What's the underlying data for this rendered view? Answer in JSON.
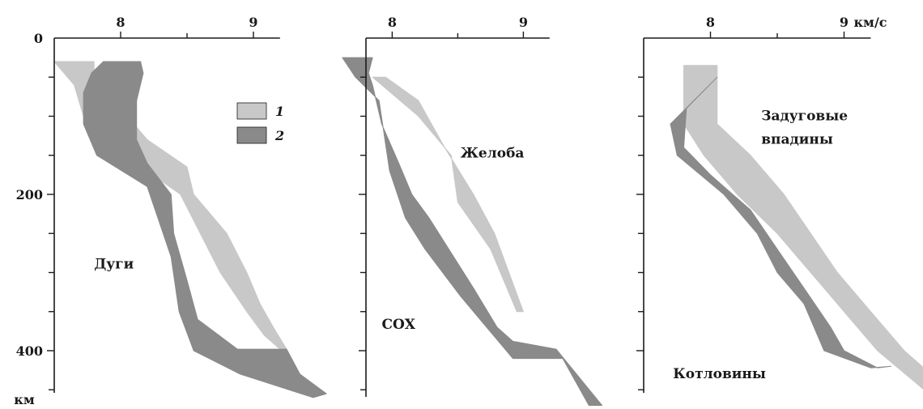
{
  "chart_data": {
    "type": "area",
    "title": "",
    "x_unit": "км/с",
    "y_unit": "км",
    "ylim": [
      0,
      460
    ],
    "y_ticks": [
      0,
      200,
      400
    ],
    "y_minor_step": 50,
    "legend": {
      "placement": "inside-first-panel-top-right",
      "entries": [
        {
          "key": "1",
          "label": "1",
          "color": "#c8c8c8"
        },
        {
          "key": "2",
          "label": "2",
          "color": "#8a8a8a"
        }
      ]
    },
    "panels": [
      {
        "xlim": [
          7.5,
          9.2
        ],
        "x_ticks": [
          8,
          9
        ],
        "x_minor": [
          8.5
        ],
        "y_tick_labels_shown": true,
        "y_unit_shown": true,
        "x_unit_shown": false,
        "labels": [
          {
            "text": "Дуги",
            "x": 7.8,
            "y": 295
          }
        ],
        "bands": [
          {
            "series": "1",
            "left": [
              [
                7.5,
                30
              ],
              [
                7.65,
                60
              ],
              [
                7.72,
                100
              ],
              [
                7.85,
                130
              ],
              [
                8.2,
                170
              ],
              [
                8.45,
                200
              ],
              [
                8.6,
                250
              ],
              [
                8.75,
                300
              ],
              [
                8.95,
                350
              ],
              [
                9.08,
                380
              ],
              [
                9.2,
                398
              ]
            ],
            "right": [
              [
                7.8,
                30
              ],
              [
                7.8,
                60
              ],
              [
                8.05,
                100
              ],
              [
                8.2,
                130
              ],
              [
                8.5,
                165
              ],
              [
                8.55,
                200
              ],
              [
                8.8,
                250
              ],
              [
                8.95,
                300
              ],
              [
                9.05,
                340
              ],
              [
                9.15,
                370
              ],
              [
                9.25,
                398
              ]
            ]
          },
          {
            "series": "2",
            "left": [
              [
                7.87,
                30
              ],
              [
                7.78,
                45
              ],
              [
                7.72,
                70
              ],
              [
                7.72,
                110
              ],
              [
                7.82,
                150
              ],
              [
                8.2,
                190
              ],
              [
                8.28,
                230
              ],
              [
                8.38,
                280
              ],
              [
                8.44,
                350
              ],
              [
                8.55,
                400
              ],
              [
                8.9,
                430
              ],
              [
                9.45,
                460
              ]
            ],
            "right": [
              [
                8.15,
                30
              ],
              [
                8.17,
                45
              ],
              [
                8.12,
                80
              ],
              [
                8.12,
                130
              ],
              [
                8.2,
                160
              ],
              [
                8.38,
                200
              ],
              [
                8.4,
                250
              ],
              [
                8.5,
                310
              ],
              [
                8.58,
                360
              ],
              [
                8.88,
                398
              ],
              [
                9.25,
                398
              ],
              [
                9.35,
                430
              ],
              [
                9.55,
                455
              ]
            ]
          }
        ]
      },
      {
        "xlim": [
          7.8,
          9.2
        ],
        "x_ticks": [
          8,
          9
        ],
        "x_minor": [
          8.5
        ],
        "y_tick_labels_shown": false,
        "y_unit_shown": false,
        "x_unit_shown": false,
        "labels": [
          {
            "text": "Желоба",
            "x": 8.52,
            "y": 153
          },
          {
            "text": "СОХ",
            "x": 7.92,
            "y": 372
          }
        ],
        "bands": [
          {
            "series": "1",
            "left": [
              [
                7.85,
                50
              ],
              [
                8.2,
                100
              ],
              [
                8.45,
                150
              ],
              [
                8.5,
                210
              ],
              [
                8.75,
                270
              ],
              [
                8.95,
                350
              ]
            ],
            "right": [
              [
                7.95,
                50
              ],
              [
                8.2,
                80
              ],
              [
                8.4,
                140
              ],
              [
                8.62,
                200
              ],
              [
                8.78,
                250
              ],
              [
                9.0,
                350
              ]
            ]
          },
          {
            "series": "2",
            "left": [
              [
                7.62,
                25
              ],
              [
                7.72,
                50
              ],
              [
                7.9,
                80
              ],
              [
                7.98,
                170
              ],
              [
                8.1,
                230
              ],
              [
                8.25,
                270
              ],
              [
                8.52,
                330
              ],
              [
                8.72,
                370
              ],
              [
                8.92,
                410
              ],
              [
                9.3,
                410
              ],
              [
                9.5,
                470
              ]
            ],
            "right": [
              [
                7.85,
                25
              ],
              [
                7.82,
                45
              ],
              [
                7.85,
                60
              ],
              [
                7.92,
                110
              ],
              [
                8.05,
                160
              ],
              [
                8.15,
                200
              ],
              [
                8.28,
                230
              ],
              [
                8.62,
                320
              ],
              [
                8.8,
                370
              ],
              [
                8.92,
                388
              ],
              [
                9.25,
                398
              ],
              [
                9.6,
                470
              ]
            ]
          }
        ]
      },
      {
        "xlim": [
          7.5,
          9.2
        ],
        "x_ticks": [
          8,
          9
        ],
        "x_minor": [
          8.5
        ],
        "y_tick_labels_shown": false,
        "y_unit_shown": false,
        "x_unit_shown": true,
        "labels": [
          {
            "text": "Задуговые",
            "x": 8.38,
            "y": 105
          },
          {
            "text": "впадины",
            "x": 8.38,
            "y": 135
          },
          {
            "text": "Котловины",
            "x": 7.72,
            "y": 435
          }
        ],
        "bands": [
          {
            "series": "1",
            "left": [
              [
                7.8,
                35
              ],
              [
                7.8,
                110
              ],
              [
                7.95,
                150
              ],
              [
                8.2,
                200
              ],
              [
                8.5,
                250
              ],
              [
                8.75,
                300
              ],
              [
                9.0,
                350
              ],
              [
                9.25,
                400
              ],
              [
                9.6,
                450
              ]
            ],
            "right": [
              [
                8.05,
                35
              ],
              [
                8.05,
                110
              ],
              [
                8.3,
                150
              ],
              [
                8.55,
                200
              ],
              [
                8.75,
                250
              ],
              [
                8.95,
                300
              ],
              [
                9.2,
                350
              ],
              [
                9.45,
                400
              ],
              [
                9.75,
                445
              ]
            ]
          },
          {
            "series": "2",
            "left": [
              [
                7.7,
                110
              ],
              [
                7.75,
                150
              ],
              [
                8.1,
                200
              ],
              [
                8.35,
                250
              ],
              [
                8.5,
                300
              ],
              [
                8.7,
                340
              ],
              [
                8.85,
                400
              ],
              [
                9.2,
                422
              ],
              [
                9.35,
                420
              ]
            ],
            "right": [
              [
                8.05,
                50
              ],
              [
                7.82,
                90
              ],
              [
                7.8,
                140
              ],
              [
                8.0,
                175
              ],
              [
                8.3,
                220
              ],
              [
                8.5,
                270
              ],
              [
                8.7,
                320
              ],
              [
                8.9,
                370
              ],
              [
                9.0,
                400
              ],
              [
                9.25,
                422
              ]
            ]
          }
        ]
      }
    ]
  }
}
